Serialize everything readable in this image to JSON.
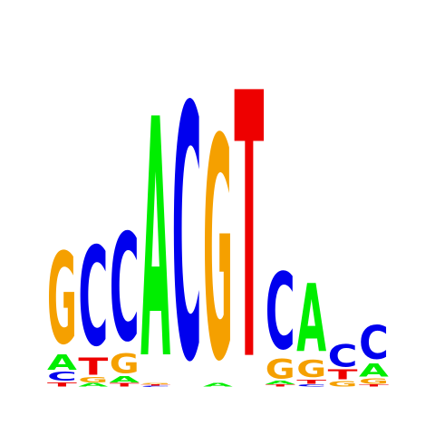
{
  "chart_data": {
    "type": "sequence-logo",
    "alphabet": [
      "A",
      "C",
      "G",
      "T"
    ],
    "colors": {
      "A": "#00ee00",
      "C": "#0000ee",
      "G": "#f5a000",
      "T": "#ee0000"
    },
    "positions": [
      {
        "letters": [
          {
            "base": "T",
            "height": 0.04
          },
          {
            "base": "C",
            "height": 0.08
          },
          {
            "base": "A",
            "height": 0.14
          },
          {
            "base": "G",
            "height": 0.85
          }
        ]
      },
      {
        "letters": [
          {
            "base": "A",
            "height": 0.03
          },
          {
            "base": "G",
            "height": 0.05
          },
          {
            "base": "T",
            "height": 0.16
          },
          {
            "base": "C",
            "height": 0.92
          }
        ]
      },
      {
        "letters": [
          {
            "base": "T",
            "height": 0.03
          },
          {
            "base": "A",
            "height": 0.06
          },
          {
            "base": "G",
            "height": 0.18
          },
          {
            "base": "C",
            "height": 1.0
          }
        ]
      },
      {
        "letters": [
          {
            "base": "C",
            "height": 0.01
          },
          {
            "base": "T",
            "height": 0.01
          },
          {
            "base": "G",
            "height": 0.01
          },
          {
            "base": "A",
            "height": 2.22
          }
        ]
      },
      {
        "letters": [
          {
            "base": "C",
            "height": 2.36
          }
        ]
      },
      {
        "letters": [
          {
            "base": "A",
            "height": 0.03
          },
          {
            "base": "G",
            "height": 2.06
          }
        ]
      },
      {
        "letters": [
          {
            "base": "T",
            "height": 2.47
          }
        ]
      },
      {
        "letters": [
          {
            "base": "T",
            "height": 0.02
          },
          {
            "base": "A",
            "height": 0.03
          },
          {
            "base": "G",
            "height": 0.18
          },
          {
            "base": "C",
            "height": 0.71
          }
        ]
      },
      {
        "letters": [
          {
            "base": "C",
            "height": 0.02
          },
          {
            "base": "T",
            "height": 0.04
          },
          {
            "base": "G",
            "height": 0.16
          },
          {
            "base": "A",
            "height": 0.63
          }
        ]
      },
      {
        "letters": [
          {
            "base": "G",
            "height": 0.05
          },
          {
            "base": "T",
            "height": 0.09
          },
          {
            "base": "C",
            "height": 0.21
          }
        ]
      },
      {
        "letters": [
          {
            "base": "T",
            "height": 0.02
          },
          {
            "base": "G",
            "height": 0.05
          },
          {
            "base": "A",
            "height": 0.12
          },
          {
            "base": "C",
            "height": 0.31
          }
        ]
      }
    ]
  }
}
